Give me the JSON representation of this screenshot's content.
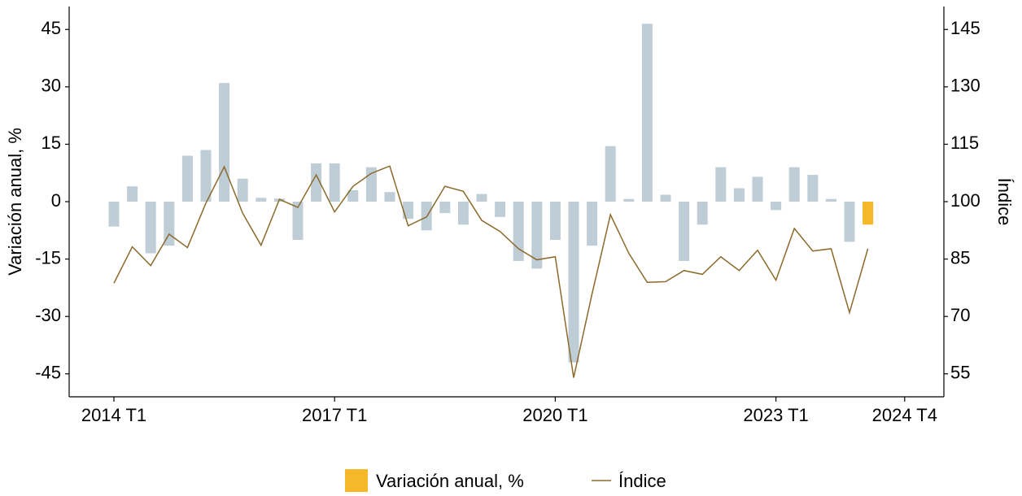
{
  "chart_data": {
    "type": "bar_line",
    "categories": [
      "2014 T1",
      null,
      null,
      null,
      null,
      null,
      null,
      null,
      null,
      null,
      null,
      null,
      "2017 T1",
      null,
      null,
      null,
      null,
      null,
      null,
      null,
      null,
      null,
      null,
      null,
      "2020 T1",
      null,
      null,
      null,
      null,
      null,
      null,
      null,
      null,
      null,
      null,
      null,
      "2023 T1",
      null,
      null,
      null,
      null,
      null,
      null,
      "2024 T4"
    ],
    "series": [
      {
        "name": "Variación anual, %",
        "type": "bar",
        "color": "#f6b828",
        "colors": [
          "#bfcdd6",
          "#bfcdd6",
          "#bfcdd6",
          "#bfcdd6",
          "#bfcdd6",
          "#bfcdd6",
          "#bfcdd6",
          "#bfcdd6",
          "#bfcdd6",
          "#bfcdd6",
          "#bfcdd6",
          "#bfcdd6",
          "#bfcdd6",
          "#bfcdd6",
          "#bfcdd6",
          "#bfcdd6",
          "#bfcdd6",
          "#bfcdd6",
          "#bfcdd6",
          "#bfcdd6",
          "#bfcdd6",
          "#bfcdd6",
          "#bfcdd6",
          "#bfcdd6",
          "#bfcdd6",
          "#bfcdd6",
          "#bfcdd6",
          "#bfcdd6",
          "#bfcdd6",
          "#bfcdd6",
          "#bfcdd6",
          "#bfcdd6",
          "#bfcdd6",
          "#bfcdd6",
          "#bfcdd6",
          "#bfcdd6",
          "#bfcdd6",
          "#bfcdd6",
          "#bfcdd6",
          "#bfcdd6",
          "#bfcdd6",
          "#f6b828",
          "#bfcdd6",
          "#bfcdd6"
        ],
        "values": [
          -6.5,
          4,
          -13.5,
          -11.5,
          12,
          13.5,
          31,
          6,
          1,
          0.8,
          -10,
          10,
          10,
          3,
          9,
          2.5,
          -4.5,
          -7.5,
          -3,
          -6,
          2,
          -4,
          -15.5,
          -17.5,
          -10,
          -42,
          -11.5,
          14.5,
          0.7,
          46.5,
          1.8,
          -15.5,
          -6,
          9,
          3.5,
          6.5,
          -2.2,
          9,
          7,
          0.7,
          -10.5,
          -6,
          null,
          null
        ]
      },
      {
        "name": "Índice",
        "type": "line",
        "axis": "y2",
        "color": "#8b6a2b",
        "values": [
          78.7,
          88.2,
          83.3,
          91.5,
          88,
          99.6,
          109.1,
          97,
          88.6,
          100.6,
          98.5,
          107,
          97.3,
          104,
          107.4,
          109.3,
          93.7,
          96,
          104,
          102.7,
          95.1,
          92.2,
          87.7,
          84.8,
          85.6,
          54,
          75.9,
          96.6,
          86.5,
          78.9,
          79.1,
          82,
          81,
          85.6,
          82,
          87.3,
          79.5,
          93,
          87.1,
          87.7,
          71,
          87.7,
          null,
          null
        ]
      }
    ],
    "ylabel": "Variación anual, %",
    "y2label": "Índice",
    "ylim": [
      -51,
      51
    ],
    "yticks": [
      -45,
      -30,
      -15,
      0,
      15,
      30,
      45
    ],
    "y2lim": [
      49,
      151
    ],
    "y2ticks": [
      55,
      70,
      85,
      100,
      115,
      130,
      145
    ],
    "legend": "bottom"
  }
}
